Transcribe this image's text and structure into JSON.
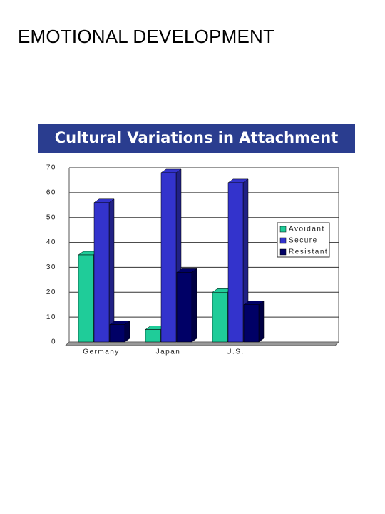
{
  "heading": "EMOTIONAL DEVELOPMENT",
  "chart_data": {
    "type": "bar3d",
    "title": "Cultural Variations in Attachment",
    "categories": [
      "Germany",
      "Japan",
      "U.S."
    ],
    "series": [
      {
        "name": "Avoidant",
        "color": "#1fcc99",
        "values": [
          35,
          5,
          20
        ]
      },
      {
        "name": "Secure",
        "color": "#3333cc",
        "values": [
          56,
          68,
          64
        ]
      },
      {
        "name": "Resistant",
        "color": "#000066",
        "values": [
          7,
          28,
          15
        ]
      }
    ],
    "ylim": [
      0,
      70
    ],
    "yticks": [
      0,
      10,
      20,
      30,
      40,
      50,
      60,
      70
    ],
    "grid": true,
    "legend": "right"
  }
}
